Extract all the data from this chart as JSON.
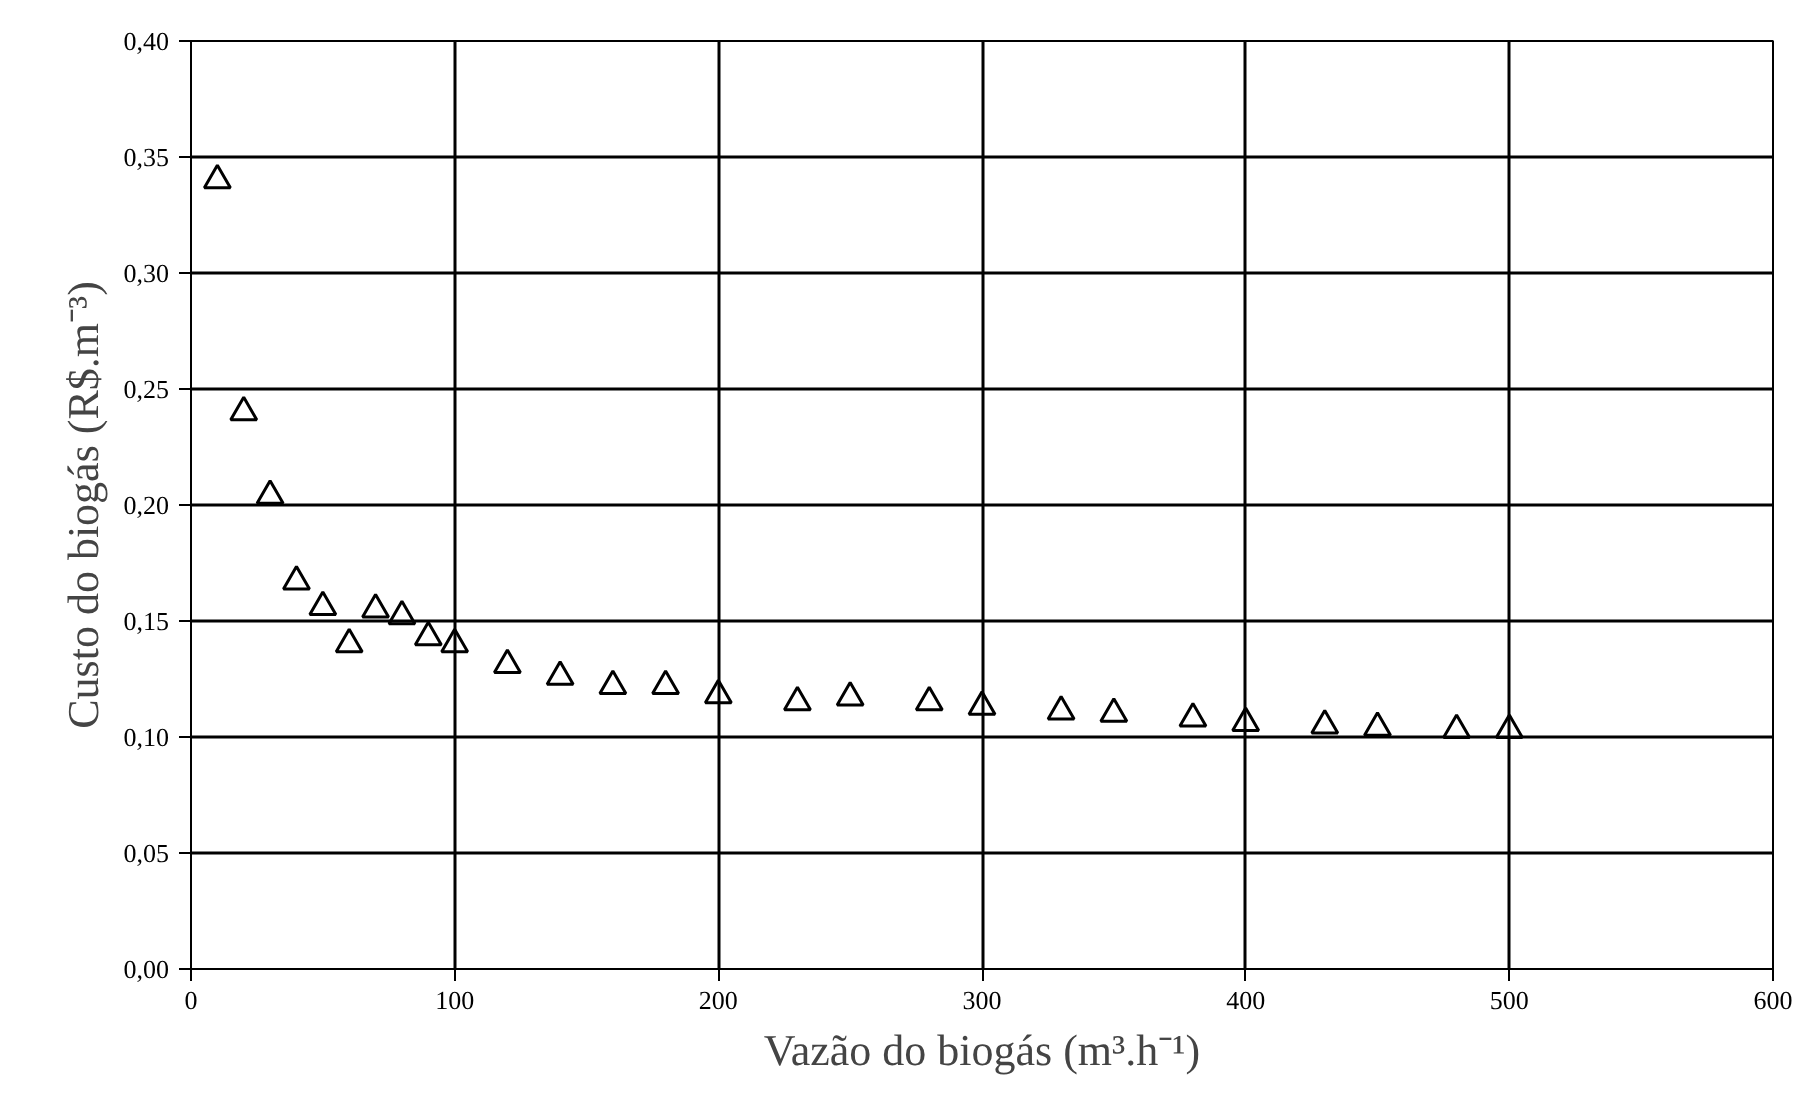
{
  "chart_data": {
    "type": "scatter",
    "xlabel": "Vazão do biogás (m³.h⁻¹)",
    "ylabel": "Custo do biogás (R$.m⁻³)",
    "x": [
      10,
      20,
      30,
      40,
      50,
      60,
      70,
      80,
      90,
      100,
      120,
      140,
      160,
      180,
      200,
      230,
      250,
      280,
      300,
      330,
      350,
      380,
      400,
      430,
      450,
      480,
      500
    ],
    "series": [
      {
        "color": "#000000",
        "values": [
          0.34,
          0.24,
          0.204,
          0.167,
          0.156,
          0.14,
          0.155,
          0.152,
          0.143,
          0.14,
          0.131,
          0.126,
          0.122,
          0.122,
          0.118,
          0.115,
          0.117,
          0.115,
          0.113,
          0.111,
          0.11,
          0.108,
          0.106,
          0.105,
          0.104,
          0.103,
          0.103
        ]
      }
    ],
    "marker": "triangle",
    "grid": true,
    "xlim": [
      0,
      600
    ],
    "xticks": [
      0,
      100,
      200,
      300,
      400,
      500,
      600
    ],
    "ylim": [
      0,
      0.4
    ],
    "yticks": [
      {
        "value": 0,
        "label": "0,00"
      },
      {
        "value": 0.05,
        "label": "0,05"
      },
      {
        "value": 0.1,
        "label": "0,10"
      },
      {
        "value": 0.15,
        "label": "0,15"
      },
      {
        "value": 0.2,
        "label": "0,20"
      },
      {
        "value": 0.25,
        "label": "0,25"
      },
      {
        "value": 0.3,
        "label": "0,30"
      },
      {
        "value": 0.35,
        "label": "0,35"
      },
      {
        "value": 0.4,
        "label": "0,40"
      }
    ]
  }
}
